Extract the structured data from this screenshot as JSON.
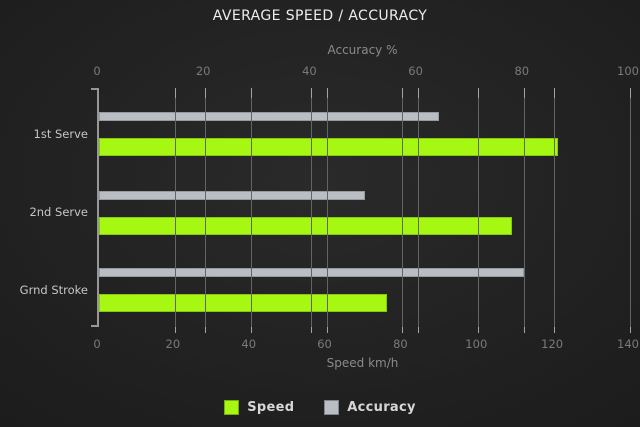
{
  "title": "AVERAGE SPEED / ACCURACY",
  "chart_data": {
    "type": "bar",
    "orientation": "horizontal",
    "categories": [
      "1st Serve",
      "2nd Serve",
      "Grnd Stroke"
    ],
    "series": [
      {
        "name": "Speed",
        "axis": "bottom",
        "color": "#a6f812",
        "values": [
          121,
          109,
          76
        ]
      },
      {
        "name": "Accuracy",
        "axis": "top",
        "color": "#b9bec4",
        "values": [
          64,
          50,
          80
        ]
      }
    ],
    "top_axis": {
      "label": "Accuracy %",
      "ticks": [
        0,
        20,
        40,
        60,
        80,
        100
      ],
      "min": 0,
      "max": 100
    },
    "bottom_axis": {
      "label": "Speed km/h",
      "ticks": [
        0,
        20,
        40,
        60,
        80,
        100,
        120,
        140
      ],
      "min": 0,
      "max": 140
    },
    "grid": true,
    "legend_position": "bottom"
  },
  "legend": {
    "items": [
      {
        "label": "Speed",
        "color": "#a6f812"
      },
      {
        "label": "Accuracy",
        "color": "#b9bec4"
      }
    ]
  },
  "colors": {
    "background": "#1f1f1f",
    "speed_bar": "#a6f812",
    "accuracy_bar": "#b9bec4",
    "gridline": "#646464",
    "title_text": "#ededed",
    "axis_text": "#8a8a8a"
  }
}
